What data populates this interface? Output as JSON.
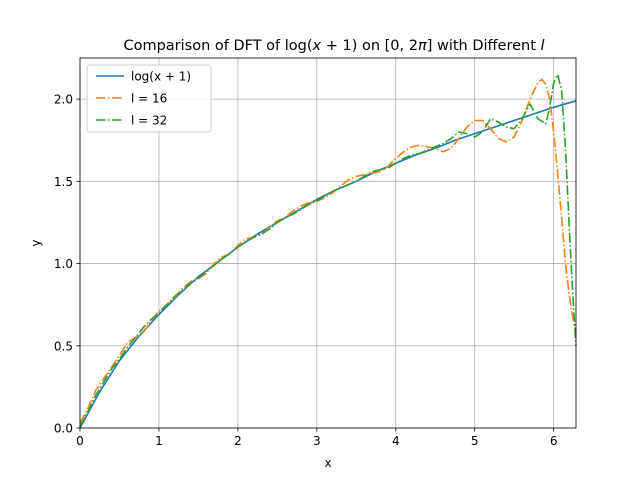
{
  "chart_data": {
    "type": "line",
    "title_parts": {
      "pre": "Comparison of DFT of log(",
      "x": "x",
      "op": " + 1",
      "mid": ") on [0, 2",
      "pi": "π",
      "post": "] with Different ",
      "var": "l"
    },
    "xlabel": "x",
    "ylabel": "y",
    "xlim": [
      0,
      6.283
    ],
    "ylim": [
      0,
      2.25
    ],
    "xticks": [
      0,
      1,
      2,
      3,
      4,
      5,
      6
    ],
    "xtick_labels": [
      "0",
      "1",
      "2",
      "3",
      "4",
      "5",
      "6"
    ],
    "yticks": [
      0,
      0.5,
      1,
      1.5,
      2
    ],
    "ytick_labels": [
      "0.0",
      "0.5",
      "1.0",
      "1.5",
      "2.0"
    ],
    "grid": true,
    "legend_position": "upper-left",
    "series": [
      {
        "name": "log(x + 1)",
        "color": "#1f77b4",
        "dash": "solid",
        "points": [
          [
            0,
            0
          ],
          [
            0.25,
            0.22
          ],
          [
            0.5,
            0.41
          ],
          [
            0.75,
            0.56
          ],
          [
            1.0,
            0.69
          ],
          [
            1.25,
            0.81
          ],
          [
            1.5,
            0.92
          ],
          [
            1.75,
            1.01
          ],
          [
            2.0,
            1.1
          ],
          [
            2.25,
            1.18
          ],
          [
            2.5,
            1.25
          ],
          [
            2.75,
            1.32
          ],
          [
            3.0,
            1.39
          ],
          [
            3.25,
            1.45
          ],
          [
            3.5,
            1.5
          ],
          [
            3.75,
            1.56
          ],
          [
            4.0,
            1.61
          ],
          [
            4.25,
            1.66
          ],
          [
            4.5,
            1.7
          ],
          [
            4.75,
            1.75
          ],
          [
            5.0,
            1.79
          ],
          [
            5.25,
            1.83
          ],
          [
            5.5,
            1.87
          ],
          [
            5.75,
            1.91
          ],
          [
            6.0,
            1.95
          ],
          [
            6.283,
            1.99
          ]
        ]
      },
      {
        "name": "l = 16",
        "color": "#ff7f0e",
        "dash": "dashdot",
        "points": [
          [
            0,
            0.03
          ],
          [
            0.1,
            0.12
          ],
          [
            0.2,
            0.23
          ],
          [
            0.3,
            0.3
          ],
          [
            0.4,
            0.37
          ],
          [
            0.5,
            0.44
          ],
          [
            0.6,
            0.52
          ],
          [
            0.7,
            0.55
          ],
          [
            0.8,
            0.58
          ],
          [
            0.9,
            0.65
          ],
          [
            1.0,
            0.71
          ],
          [
            1.1,
            0.75
          ],
          [
            1.2,
            0.79
          ],
          [
            1.3,
            0.85
          ],
          [
            1.4,
            0.89
          ],
          [
            1.5,
            0.91
          ],
          [
            1.6,
            0.94
          ],
          [
            1.7,
            1.0
          ],
          [
            1.8,
            1.04
          ],
          [
            1.9,
            1.06
          ],
          [
            2.0,
            1.11
          ],
          [
            2.1,
            1.15
          ],
          [
            2.2,
            1.16
          ],
          [
            2.3,
            1.18
          ],
          [
            2.4,
            1.22
          ],
          [
            2.5,
            1.26
          ],
          [
            2.6,
            1.28
          ],
          [
            2.7,
            1.32
          ],
          [
            2.8,
            1.35
          ],
          [
            2.9,
            1.37
          ],
          [
            3.0,
            1.38
          ],
          [
            3.1,
            1.4
          ],
          [
            3.2,
            1.43
          ],
          [
            3.3,
            1.47
          ],
          [
            3.4,
            1.51
          ],
          [
            3.5,
            1.53
          ],
          [
            3.6,
            1.54
          ],
          [
            3.7,
            1.55
          ],
          [
            3.8,
            1.56
          ],
          [
            3.9,
            1.59
          ],
          [
            4.0,
            1.64
          ],
          [
            4.1,
            1.68
          ],
          [
            4.2,
            1.71
          ],
          [
            4.3,
            1.72
          ],
          [
            4.4,
            1.71
          ],
          [
            4.5,
            1.7
          ],
          [
            4.6,
            1.68
          ],
          [
            4.7,
            1.7
          ],
          [
            4.8,
            1.76
          ],
          [
            4.9,
            1.83
          ],
          [
            5.0,
            1.87
          ],
          [
            5.1,
            1.87
          ],
          [
            5.2,
            1.82
          ],
          [
            5.3,
            1.76
          ],
          [
            5.4,
            1.74
          ],
          [
            5.5,
            1.77
          ],
          [
            5.6,
            1.87
          ],
          [
            5.7,
            2.0
          ],
          [
            5.8,
            2.1
          ],
          [
            5.85,
            2.12
          ],
          [
            5.9,
            2.09
          ],
          [
            5.95,
            2.0
          ],
          [
            6.0,
            1.8
          ],
          [
            6.05,
            1.55
          ],
          [
            6.1,
            1.28
          ],
          [
            6.15,
            1.0
          ],
          [
            6.2,
            0.8
          ],
          [
            6.25,
            0.65
          ],
          [
            6.283,
            0.58
          ]
        ]
      },
      {
        "name": "l = 32",
        "color": "#2ca02c",
        "dash": "dashdot",
        "points": [
          [
            0,
            0.01
          ],
          [
            0.1,
            0.1
          ],
          [
            0.2,
            0.2
          ],
          [
            0.3,
            0.28
          ],
          [
            0.4,
            0.36
          ],
          [
            0.5,
            0.42
          ],
          [
            0.6,
            0.49
          ],
          [
            0.7,
            0.55
          ],
          [
            0.8,
            0.61
          ],
          [
            0.9,
            0.66
          ],
          [
            1.0,
            0.7
          ],
          [
            1.1,
            0.75
          ],
          [
            1.2,
            0.8
          ],
          [
            1.3,
            0.84
          ],
          [
            1.4,
            0.88
          ],
          [
            1.5,
            0.91
          ],
          [
            1.6,
            0.95
          ],
          [
            1.7,
            0.99
          ],
          [
            1.8,
            1.03
          ],
          [
            1.9,
            1.06
          ],
          [
            2.0,
            1.1
          ],
          [
            2.1,
            1.13
          ],
          [
            2.2,
            1.16
          ],
          [
            2.3,
            1.18
          ],
          [
            2.4,
            1.21
          ],
          [
            2.5,
            1.25
          ],
          [
            2.6,
            1.28
          ],
          [
            2.7,
            1.3
          ],
          [
            2.8,
            1.33
          ],
          [
            2.9,
            1.36
          ],
          [
            3.0,
            1.38
          ],
          [
            3.1,
            1.41
          ],
          [
            3.2,
            1.44
          ],
          [
            3.3,
            1.46
          ],
          [
            3.4,
            1.48
          ],
          [
            3.5,
            1.5
          ],
          [
            3.6,
            1.53
          ],
          [
            3.7,
            1.56
          ],
          [
            3.8,
            1.57
          ],
          [
            3.9,
            1.58
          ],
          [
            4.0,
            1.61
          ],
          [
            4.1,
            1.64
          ],
          [
            4.2,
            1.66
          ],
          [
            4.3,
            1.67
          ],
          [
            4.4,
            1.69
          ],
          [
            4.5,
            1.71
          ],
          [
            4.6,
            1.73
          ],
          [
            4.7,
            1.76
          ],
          [
            4.8,
            1.8
          ],
          [
            4.9,
            1.79
          ],
          [
            5.0,
            1.77
          ],
          [
            5.1,
            1.8
          ],
          [
            5.2,
            1.88
          ],
          [
            5.3,
            1.86
          ],
          [
            5.4,
            1.83
          ],
          [
            5.5,
            1.82
          ],
          [
            5.6,
            1.88
          ],
          [
            5.7,
            1.97
          ],
          [
            5.8,
            1.88
          ],
          [
            5.9,
            1.85
          ],
          [
            5.95,
            1.95
          ],
          [
            6.0,
            2.1
          ],
          [
            6.05,
            2.15
          ],
          [
            6.1,
            2.05
          ],
          [
            6.15,
            1.7
          ],
          [
            6.2,
            1.2
          ],
          [
            6.25,
            0.75
          ],
          [
            6.283,
            0.5
          ]
        ]
      }
    ]
  }
}
